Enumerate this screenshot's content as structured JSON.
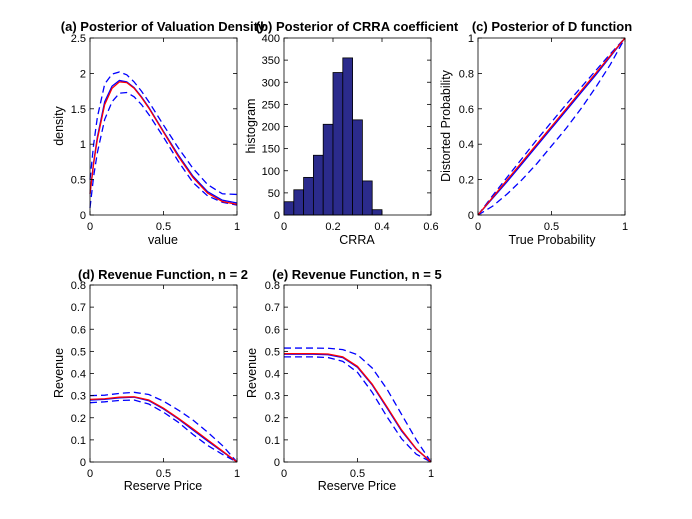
{
  "chart_data": [
    {
      "id": "a",
      "type": "line",
      "title": "(a) Posterior of Valuation Density",
      "xlabel": "value",
      "ylabel": "density",
      "xlim": [
        0,
        1
      ],
      "ylim": [
        0,
        2.5
      ],
      "xticks": [
        "0",
        "0.5",
        "1"
      ],
      "yticks": [
        "0",
        "0.5",
        "1",
        "1.5",
        "2",
        "2.5"
      ],
      "series": [
        {
          "role": "upper",
          "color": "#0000ff",
          "dash": true,
          "x": [
            0,
            0.025,
            0.05,
            0.1,
            0.15,
            0.2,
            0.25,
            0.3,
            0.35,
            0.4,
            0.5,
            0.6,
            0.7,
            0.8,
            0.9,
            1.0
          ],
          "y": [
            0.5,
            1.0,
            1.38,
            1.85,
            1.99,
            2.02,
            1.98,
            1.88,
            1.75,
            1.6,
            1.27,
            0.95,
            0.66,
            0.43,
            0.3,
            0.29
          ]
        },
        {
          "role": "lower",
          "color": "#0000ff",
          "dash": true,
          "x": [
            0,
            0.025,
            0.05,
            0.1,
            0.15,
            0.2,
            0.25,
            0.3,
            0.35,
            0.4,
            0.5,
            0.6,
            0.7,
            0.8,
            0.9,
            1.0
          ],
          "y": [
            0.1,
            0.55,
            0.88,
            1.35,
            1.6,
            1.72,
            1.73,
            1.67,
            1.56,
            1.42,
            1.1,
            0.76,
            0.46,
            0.27,
            0.18,
            0.14
          ]
        },
        {
          "role": "mean",
          "color": "#0000ff",
          "dash": false,
          "x": [
            0,
            0.025,
            0.05,
            0.1,
            0.15,
            0.2,
            0.25,
            0.3,
            0.35,
            0.4,
            0.5,
            0.6,
            0.7,
            0.8,
            0.9,
            1.0
          ],
          "y": [
            0.3,
            0.75,
            1.1,
            1.6,
            1.82,
            1.9,
            1.88,
            1.8,
            1.67,
            1.52,
            1.18,
            0.85,
            0.55,
            0.33,
            0.21,
            0.17
          ]
        },
        {
          "role": "true",
          "color": "#ff0000",
          "dash": false,
          "x": [
            0,
            0.025,
            0.05,
            0.1,
            0.15,
            0.2,
            0.25,
            0.3,
            0.35,
            0.4,
            0.5,
            0.6,
            0.7,
            0.8,
            0.9,
            1.0
          ],
          "y": [
            0.3,
            0.73,
            1.07,
            1.56,
            1.79,
            1.88,
            1.87,
            1.79,
            1.66,
            1.51,
            1.17,
            0.83,
            0.53,
            0.31,
            0.19,
            0.15
          ]
        }
      ]
    },
    {
      "id": "b",
      "type": "bar",
      "title": "(b) Posterior of CRRA coefficient",
      "xlabel": "CRRA",
      "ylabel": "histogram",
      "xlim": [
        0,
        0.6
      ],
      "ylim": [
        0,
        400
      ],
      "xticks": [
        "0",
        "0.2",
        "0.4",
        "0.6"
      ],
      "yticks": [
        "0",
        "50",
        "100",
        "150",
        "200",
        "250",
        "300",
        "350",
        "400"
      ],
      "bar_color": "#2b2b8c",
      "bin_edges": [
        0.0,
        0.04,
        0.08,
        0.12,
        0.16,
        0.2,
        0.24,
        0.28,
        0.32,
        0.36,
        0.4
      ],
      "values": [
        30,
        57,
        85,
        135,
        205,
        322,
        355,
        215,
        77,
        12
      ]
    },
    {
      "id": "c",
      "type": "line",
      "title": "(c) Posterior of D function",
      "xlabel": "True Probability",
      "ylabel": "Distorted Probability",
      "xlim": [
        0,
        1
      ],
      "ylim": [
        0,
        1
      ],
      "xticks": [
        "0",
        "0.5",
        "1"
      ],
      "yticks": [
        "0",
        "0.2",
        "0.4",
        "0.6",
        "0.8",
        "1"
      ],
      "series": [
        {
          "role": "upper",
          "color": "#0000ff",
          "dash": true,
          "x": [
            0,
            0.1,
            0.2,
            0.3,
            0.4,
            0.5,
            0.6,
            0.7,
            0.8,
            0.9,
            1.0
          ],
          "y": [
            0,
            0.11,
            0.215,
            0.32,
            0.425,
            0.525,
            0.625,
            0.72,
            0.815,
            0.91,
            1.0
          ]
        },
        {
          "role": "lower",
          "color": "#0000ff",
          "dash": true,
          "x": [
            0,
            0.1,
            0.2,
            0.3,
            0.4,
            0.5,
            0.6,
            0.7,
            0.8,
            0.9,
            1.0
          ],
          "y": [
            0,
            0.05,
            0.12,
            0.2,
            0.29,
            0.39,
            0.49,
            0.6,
            0.72,
            0.85,
            1.0
          ]
        },
        {
          "role": "mean",
          "color": "#0000ff",
          "dash": false,
          "x": [
            0,
            0.1,
            0.2,
            0.3,
            0.4,
            0.5,
            0.6,
            0.7,
            0.8,
            0.9,
            1.0
          ],
          "y": [
            0,
            0.095,
            0.19,
            0.29,
            0.39,
            0.49,
            0.59,
            0.69,
            0.79,
            0.895,
            1.0
          ]
        },
        {
          "role": "true",
          "color": "#ff0000",
          "dash": false,
          "x": [
            0,
            0.1,
            0.2,
            0.3,
            0.4,
            0.5,
            0.6,
            0.7,
            0.8,
            0.9,
            1.0
          ],
          "y": [
            0,
            0.1,
            0.2,
            0.3,
            0.4,
            0.5,
            0.6,
            0.7,
            0.8,
            0.9,
            1.0
          ]
        }
      ]
    },
    {
      "id": "d",
      "type": "line",
      "title": "(d) Revenue Function, n = 2",
      "xlabel": "Reserve Price",
      "ylabel": "Revenue",
      "xlim": [
        0,
        1
      ],
      "ylim": [
        0,
        0.8
      ],
      "xticks": [
        "0",
        "0.5",
        "1"
      ],
      "yticks": [
        "0",
        "0.1",
        "0.2",
        "0.3",
        "0.4",
        "0.5",
        "0.6",
        "0.7",
        "0.8"
      ],
      "series": [
        {
          "role": "upper",
          "color": "#0000ff",
          "dash": true,
          "x": [
            0,
            0.1,
            0.2,
            0.3,
            0.4,
            0.5,
            0.6,
            0.7,
            0.8,
            0.9,
            1.0
          ],
          "y": [
            0.3,
            0.302,
            0.31,
            0.315,
            0.305,
            0.275,
            0.235,
            0.19,
            0.135,
            0.075,
            0.0
          ]
        },
        {
          "role": "lower",
          "color": "#0000ff",
          "dash": true,
          "x": [
            0,
            0.1,
            0.2,
            0.3,
            0.4,
            0.5,
            0.6,
            0.7,
            0.8,
            0.9,
            1.0
          ],
          "y": [
            0.268,
            0.272,
            0.278,
            0.28,
            0.262,
            0.225,
            0.18,
            0.125,
            0.075,
            0.035,
            0.0
          ]
        },
        {
          "role": "mean",
          "color": "#0000ff",
          "dash": false,
          "x": [
            0,
            0.1,
            0.2,
            0.3,
            0.4,
            0.5,
            0.6,
            0.7,
            0.8,
            0.9,
            1.0
          ],
          "y": [
            0.28,
            0.283,
            0.29,
            0.293,
            0.277,
            0.24,
            0.195,
            0.145,
            0.095,
            0.047,
            0.0
          ]
        },
        {
          "role": "true",
          "color": "#ff0000",
          "dash": false,
          "x": [
            0,
            0.1,
            0.2,
            0.3,
            0.4,
            0.5,
            0.6,
            0.7,
            0.8,
            0.9,
            1.0
          ],
          "y": [
            0.283,
            0.286,
            0.293,
            0.295,
            0.28,
            0.243,
            0.198,
            0.15,
            0.1,
            0.05,
            0.0
          ]
        }
      ]
    },
    {
      "id": "e",
      "type": "line",
      "title": "(e) Revenue Function, n = 5",
      "xlabel": "Reserve Price",
      "ylabel": "Revenue",
      "xlim": [
        0,
        1
      ],
      "ylim": [
        0,
        0.8
      ],
      "xticks": [
        "0",
        "0.5",
        "1"
      ],
      "yticks": [
        "0",
        "0.1",
        "0.2",
        "0.3",
        "0.4",
        "0.5",
        "0.6",
        "0.7",
        "0.8"
      ],
      "series": [
        {
          "role": "upper",
          "color": "#0000ff",
          "dash": true,
          "x": [
            0,
            0.1,
            0.2,
            0.3,
            0.4,
            0.5,
            0.6,
            0.7,
            0.8,
            0.9,
            1.0
          ],
          "y": [
            0.515,
            0.515,
            0.515,
            0.514,
            0.508,
            0.485,
            0.425,
            0.33,
            0.215,
            0.1,
            0.0
          ]
        },
        {
          "role": "lower",
          "color": "#0000ff",
          "dash": true,
          "x": [
            0,
            0.1,
            0.2,
            0.3,
            0.4,
            0.5,
            0.6,
            0.7,
            0.8,
            0.9,
            1.0
          ],
          "y": [
            0.475,
            0.475,
            0.475,
            0.472,
            0.455,
            0.405,
            0.315,
            0.205,
            0.105,
            0.035,
            0.0
          ]
        },
        {
          "role": "mean",
          "color": "#0000ff",
          "dash": false,
          "x": [
            0,
            0.1,
            0.2,
            0.3,
            0.4,
            0.5,
            0.6,
            0.7,
            0.8,
            0.9,
            1.0
          ],
          "y": [
            0.487,
            0.487,
            0.487,
            0.485,
            0.472,
            0.428,
            0.348,
            0.245,
            0.14,
            0.058,
            0.0
          ]
        },
        {
          "role": "true",
          "color": "#ff0000",
          "dash": false,
          "x": [
            0,
            0.1,
            0.2,
            0.3,
            0.4,
            0.5,
            0.6,
            0.7,
            0.8,
            0.9,
            1.0
          ],
          "y": [
            0.49,
            0.49,
            0.49,
            0.488,
            0.475,
            0.432,
            0.352,
            0.25,
            0.145,
            0.06,
            0.0
          ]
        }
      ]
    }
  ]
}
